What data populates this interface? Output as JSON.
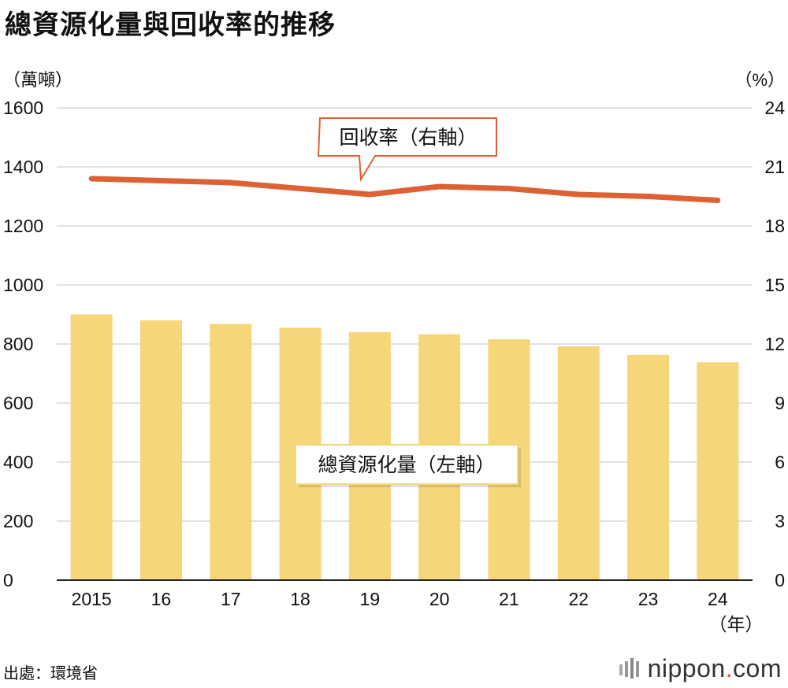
{
  "title": "總資源化量與回收率的推移",
  "left_unit": "（萬噸）",
  "right_unit": "（%）",
  "year_unit": "（年）",
  "source": "出處：環境省",
  "brand": {
    "name": "nippon",
    "dot": ".",
    "suffix": "com"
  },
  "callouts": {
    "line": "回收率（右軸）",
    "bar": "總資源化量（左軸）"
  },
  "colors": {
    "bar": "#f5d67a",
    "line": "#dd6233",
    "grid": "#d9d9d9",
    "callout_border": "#dd6233"
  },
  "chart_data": {
    "type": "bar",
    "categories": [
      "2015",
      "16",
      "17",
      "18",
      "19",
      "20",
      "21",
      "22",
      "23",
      "24"
    ],
    "series": [
      {
        "name": "總資源化量（左軸）",
        "type": "bar",
        "axis": "left",
        "values": [
          900,
          880,
          868,
          855,
          840,
          833,
          816,
          792,
          763,
          738
        ]
      },
      {
        "name": "回收率（右軸）",
        "type": "line",
        "axis": "right",
        "values": [
          20.4,
          20.3,
          20.2,
          19.9,
          19.6,
          20.0,
          19.9,
          19.6,
          19.5,
          19.3
        ]
      }
    ],
    "left_axis": {
      "ylim": [
        0,
        1600
      ],
      "ticks": [
        0,
        200,
        400,
        600,
        800,
        1000,
        1200,
        1400,
        1600
      ]
    },
    "right_axis": {
      "ylim": [
        0,
        24
      ],
      "ticks": [
        0,
        3,
        6,
        9,
        12,
        15,
        18,
        21,
        24
      ]
    },
    "grid": true
  }
}
